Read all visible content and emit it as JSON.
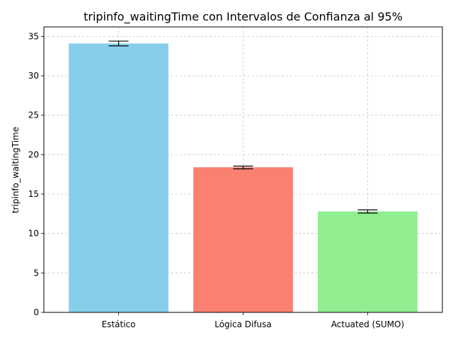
{
  "chart_data": {
    "type": "bar",
    "title": "tripinfo_waitingTime con Intervalos de Confianza al 95%",
    "xlabel": "",
    "ylabel": "tripinfo_waitingTime",
    "categories": [
      "Estático",
      "Lógica Difusa",
      "Actuated (SUMO)"
    ],
    "values": [
      34.1,
      18.4,
      12.8
    ],
    "ci_low": [
      33.8,
      18.2,
      12.6
    ],
    "ci_high": [
      34.4,
      18.55,
      13.0
    ],
    "colors": [
      "#87ceeb",
      "#fa8072",
      "#90ee90"
    ],
    "ylim": [
      0,
      36.2
    ],
    "yticks": [
      0,
      5,
      10,
      15,
      20,
      25,
      30,
      35
    ],
    "grid": true
  }
}
